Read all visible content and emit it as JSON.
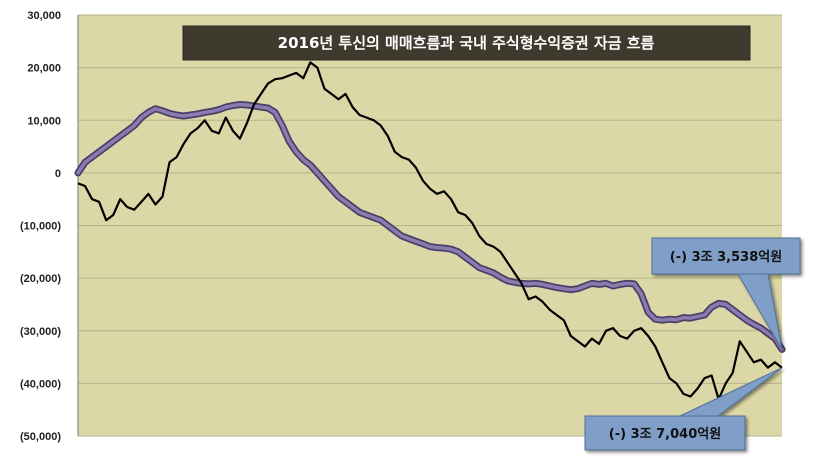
{
  "chart_data": {
    "type": "line",
    "title": "2016년 투신의 매매흐름과 국내 주식형수익증권 자금 흐름",
    "xlabel": "",
    "ylabel": "",
    "ylim": [
      -50000,
      30000
    ],
    "yticks": [
      {
        "value": 30000,
        "label": "30,000"
      },
      {
        "value": 20000,
        "label": "20,000"
      },
      {
        "value": 10000,
        "label": "10,000"
      },
      {
        "value": 0,
        "label": "0"
      },
      {
        "value": -10000,
        "label": "(10,000)"
      },
      {
        "value": -20000,
        "label": "(20,000)"
      },
      {
        "value": -30000,
        "label": "(30,000)"
      },
      {
        "value": -40000,
        "label": "(40,000)"
      },
      {
        "value": -50000,
        "label": "(50,000)"
      }
    ],
    "grid": true,
    "series": [
      {
        "color": "#6a5a8e",
        "values": [
          0,
          2000,
          3000,
          4000,
          5000,
          6000,
          7000,
          8000,
          9000,
          10500,
          11500,
          12200,
          11800,
          11300,
          11000,
          10800,
          11000,
          11200,
          11500,
          11700,
          12000,
          12500,
          12800,
          13000,
          12900,
          12700,
          12500,
          12300,
          11500,
          9000,
          6000,
          4000,
          2500,
          1500,
          0,
          -1500,
          -3000,
          -4500,
          -5500,
          -6500,
          -7500,
          -8000,
          -8500,
          -9000,
          -10000,
          -11000,
          -12000,
          -12500,
          -13000,
          -13500,
          -14000,
          -14200,
          -14300,
          -14500,
          -15000,
          -16000,
          -17000,
          -18000,
          -18500,
          -19000,
          -19800,
          -20500,
          -20800,
          -21000,
          -21100,
          -21000,
          -21200,
          -21500,
          -21800,
          -22000,
          -22200,
          -22000,
          -21500,
          -21000,
          -21200,
          -21000,
          -21500,
          -21200,
          -21000,
          -21100,
          -23000,
          -26500,
          -27800,
          -28000,
          -27800,
          -27900,
          -27500,
          -27600,
          -27300,
          -27000,
          -25500,
          -24800,
          -25000,
          -26000,
          -27000,
          -28000,
          -28800,
          -29500,
          -30500,
          -31500,
          -33538
        ]
      },
      {
        "color": "#000000",
        "values": [
          -2000,
          -2500,
          -5000,
          -5500,
          -9000,
          -8000,
          -5000,
          -6500,
          -7000,
          -5500,
          -4000,
          -6000,
          -4500,
          2000,
          3000,
          5500,
          7500,
          8500,
          10000,
          8000,
          7500,
          10500,
          8000,
          6500,
          9500,
          13000,
          15000,
          17000,
          17800,
          18000,
          18500,
          19000,
          18000,
          21000,
          20000,
          16000,
          15000,
          14000,
          15000,
          12500,
          11000,
          10500,
          10000,
          9000,
          7000,
          4000,
          3000,
          2500,
          1000,
          -1500,
          -3000,
          -4000,
          -3500,
          -5000,
          -7500,
          -8000,
          -9500,
          -12000,
          -13500,
          -14000,
          -15000,
          -17000,
          -19000,
          -21000,
          -24000,
          -23500,
          -24500,
          -26000,
          -27000,
          -28000,
          -31000,
          -32000,
          -33000,
          -31500,
          -32500,
          -30000,
          -29500,
          -31000,
          -31500,
          -30000,
          -29500,
          -31000,
          -33000,
          -36000,
          -39000,
          -40000,
          -42000,
          -42500,
          -41000,
          -39000,
          -38500,
          -43000,
          -40000,
          -38000,
          -32000,
          -34000,
          -36000,
          -35500,
          -37000,
          -36000,
          -37040
        ]
      }
    ],
    "annotations": [
      {
        "text": "(-) 3조 3,538억원",
        "target_series": 0
      },
      {
        "text": "(-) 3조 7,040억원",
        "target_series": 1
      }
    ]
  }
}
